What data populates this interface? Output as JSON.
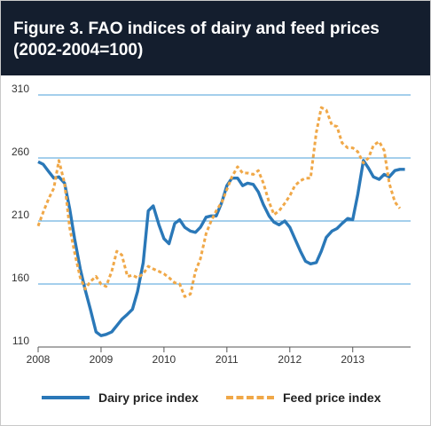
{
  "header": {
    "title_line1": "Figure 3. FAO indices of dairy and feed prices",
    "title_line2": "(2002-2004=100)"
  },
  "colors": {
    "header_bg": "#141e2e",
    "grid": "#4a9fd8",
    "dairy": "#2a78b8",
    "feed": "#f0a848",
    "axis_text": "#333333"
  },
  "chart_data": {
    "type": "line",
    "title": "Figure 3. FAO indices of dairy and feed prices (2002-2004=100)",
    "xlabel": "",
    "ylabel": "",
    "xlim": [
      2008,
      2013.92
    ],
    "ylim": [
      110,
      310
    ],
    "yticks": [
      110,
      160,
      210,
      260,
      310
    ],
    "xticks": [
      "2008",
      "2009",
      "2010",
      "2011",
      "2012",
      "2013"
    ],
    "grid": true,
    "legend_position": "bottom",
    "series": [
      {
        "name": "Dairy price index",
        "style": "solid",
        "points": [
          [
            2008.0,
            257
          ],
          [
            2008.08,
            255
          ],
          [
            2008.17,
            249
          ],
          [
            2008.25,
            244
          ],
          [
            2008.33,
            245
          ],
          [
            2008.42,
            240
          ],
          [
            2008.5,
            220
          ],
          [
            2008.58,
            196
          ],
          [
            2008.67,
            172
          ],
          [
            2008.75,
            155
          ],
          [
            2008.83,
            140
          ],
          [
            2008.92,
            122
          ],
          [
            2009.0,
            119
          ],
          [
            2009.08,
            120
          ],
          [
            2009.17,
            122
          ],
          [
            2009.25,
            127
          ],
          [
            2009.33,
            132
          ],
          [
            2009.42,
            136
          ],
          [
            2009.5,
            140
          ],
          [
            2009.58,
            154
          ],
          [
            2009.67,
            177
          ],
          [
            2009.75,
            218
          ],
          [
            2009.83,
            222
          ],
          [
            2009.92,
            207
          ],
          [
            2010.0,
            196
          ],
          [
            2010.08,
            192
          ],
          [
            2010.17,
            208
          ],
          [
            2010.25,
            211
          ],
          [
            2010.33,
            205
          ],
          [
            2010.42,
            202
          ],
          [
            2010.5,
            201
          ],
          [
            2010.58,
            205
          ],
          [
            2010.67,
            213
          ],
          [
            2010.75,
            214
          ],
          [
            2010.83,
            214
          ],
          [
            2010.92,
            225
          ],
          [
            2011.0,
            238
          ],
          [
            2011.08,
            244
          ],
          [
            2011.17,
            244
          ],
          [
            2011.25,
            238
          ],
          [
            2011.33,
            240
          ],
          [
            2011.42,
            239
          ],
          [
            2011.5,
            233
          ],
          [
            2011.58,
            223
          ],
          [
            2011.67,
            214
          ],
          [
            2011.75,
            209
          ],
          [
            2011.83,
            207
          ],
          [
            2011.92,
            210
          ],
          [
            2012.0,
            205
          ],
          [
            2012.08,
            196
          ],
          [
            2012.17,
            186
          ],
          [
            2012.25,
            178
          ],
          [
            2012.33,
            176
          ],
          [
            2012.42,
            177
          ],
          [
            2012.5,
            186
          ],
          [
            2012.58,
            197
          ],
          [
            2012.67,
            202
          ],
          [
            2012.75,
            204
          ],
          [
            2012.83,
            208
          ],
          [
            2012.92,
            212
          ],
          [
            2013.0,
            211
          ],
          [
            2013.08,
            231
          ],
          [
            2013.17,
            258
          ],
          [
            2013.25,
            252
          ],
          [
            2013.33,
            245
          ],
          [
            2013.42,
            243
          ],
          [
            2013.5,
            247
          ],
          [
            2013.58,
            245
          ],
          [
            2013.67,
            250
          ],
          [
            2013.75,
            251
          ],
          [
            2013.83,
            251
          ]
        ]
      },
      {
        "name": "Feed price index",
        "style": "dashed",
        "points": [
          [
            2008.0,
            206
          ],
          [
            2008.08,
            217
          ],
          [
            2008.17,
            228
          ],
          [
            2008.25,
            236
          ],
          [
            2008.33,
            258
          ],
          [
            2008.42,
            240
          ],
          [
            2008.5,
            205
          ],
          [
            2008.58,
            185
          ],
          [
            2008.67,
            165
          ],
          [
            2008.75,
            156
          ],
          [
            2008.83,
            162
          ],
          [
            2008.92,
            166
          ],
          [
            2009.0,
            160
          ],
          [
            2009.08,
            158
          ],
          [
            2009.17,
            170
          ],
          [
            2009.25,
            186
          ],
          [
            2009.33,
            183
          ],
          [
            2009.42,
            166
          ],
          [
            2009.5,
            167
          ],
          [
            2009.58,
            165
          ],
          [
            2009.67,
            168
          ],
          [
            2009.75,
            174
          ],
          [
            2009.83,
            172
          ],
          [
            2009.92,
            170
          ],
          [
            2010.0,
            168
          ],
          [
            2010.08,
            165
          ],
          [
            2010.17,
            161
          ],
          [
            2010.25,
            160
          ],
          [
            2010.33,
            150
          ],
          [
            2010.42,
            152
          ],
          [
            2010.5,
            170
          ],
          [
            2010.58,
            180
          ],
          [
            2010.67,
            200
          ],
          [
            2010.75,
            210
          ],
          [
            2010.83,
            218
          ],
          [
            2010.92,
            225
          ],
          [
            2011.0,
            235
          ],
          [
            2011.08,
            245
          ],
          [
            2011.17,
            253
          ],
          [
            2011.25,
            248
          ],
          [
            2011.33,
            248
          ],
          [
            2011.42,
            247
          ],
          [
            2011.5,
            250
          ],
          [
            2011.58,
            240
          ],
          [
            2011.67,
            225
          ],
          [
            2011.75,
            215
          ],
          [
            2011.83,
            218
          ],
          [
            2011.92,
            224
          ],
          [
            2012.0,
            230
          ],
          [
            2012.08,
            238
          ],
          [
            2012.17,
            242
          ],
          [
            2012.25,
            244
          ],
          [
            2012.33,
            244
          ],
          [
            2012.42,
            280
          ],
          [
            2012.5,
            300
          ],
          [
            2012.58,
            298
          ],
          [
            2012.67,
            286
          ],
          [
            2012.75,
            285
          ],
          [
            2012.83,
            272
          ],
          [
            2012.92,
            268
          ],
          [
            2013.0,
            268
          ],
          [
            2013.08,
            265
          ],
          [
            2013.17,
            256
          ],
          [
            2013.25,
            260
          ],
          [
            2013.33,
            270
          ],
          [
            2013.42,
            273
          ],
          [
            2013.5,
            266
          ],
          [
            2013.58,
            240
          ],
          [
            2013.67,
            225
          ],
          [
            2013.75,
            220
          ]
        ]
      }
    ]
  }
}
